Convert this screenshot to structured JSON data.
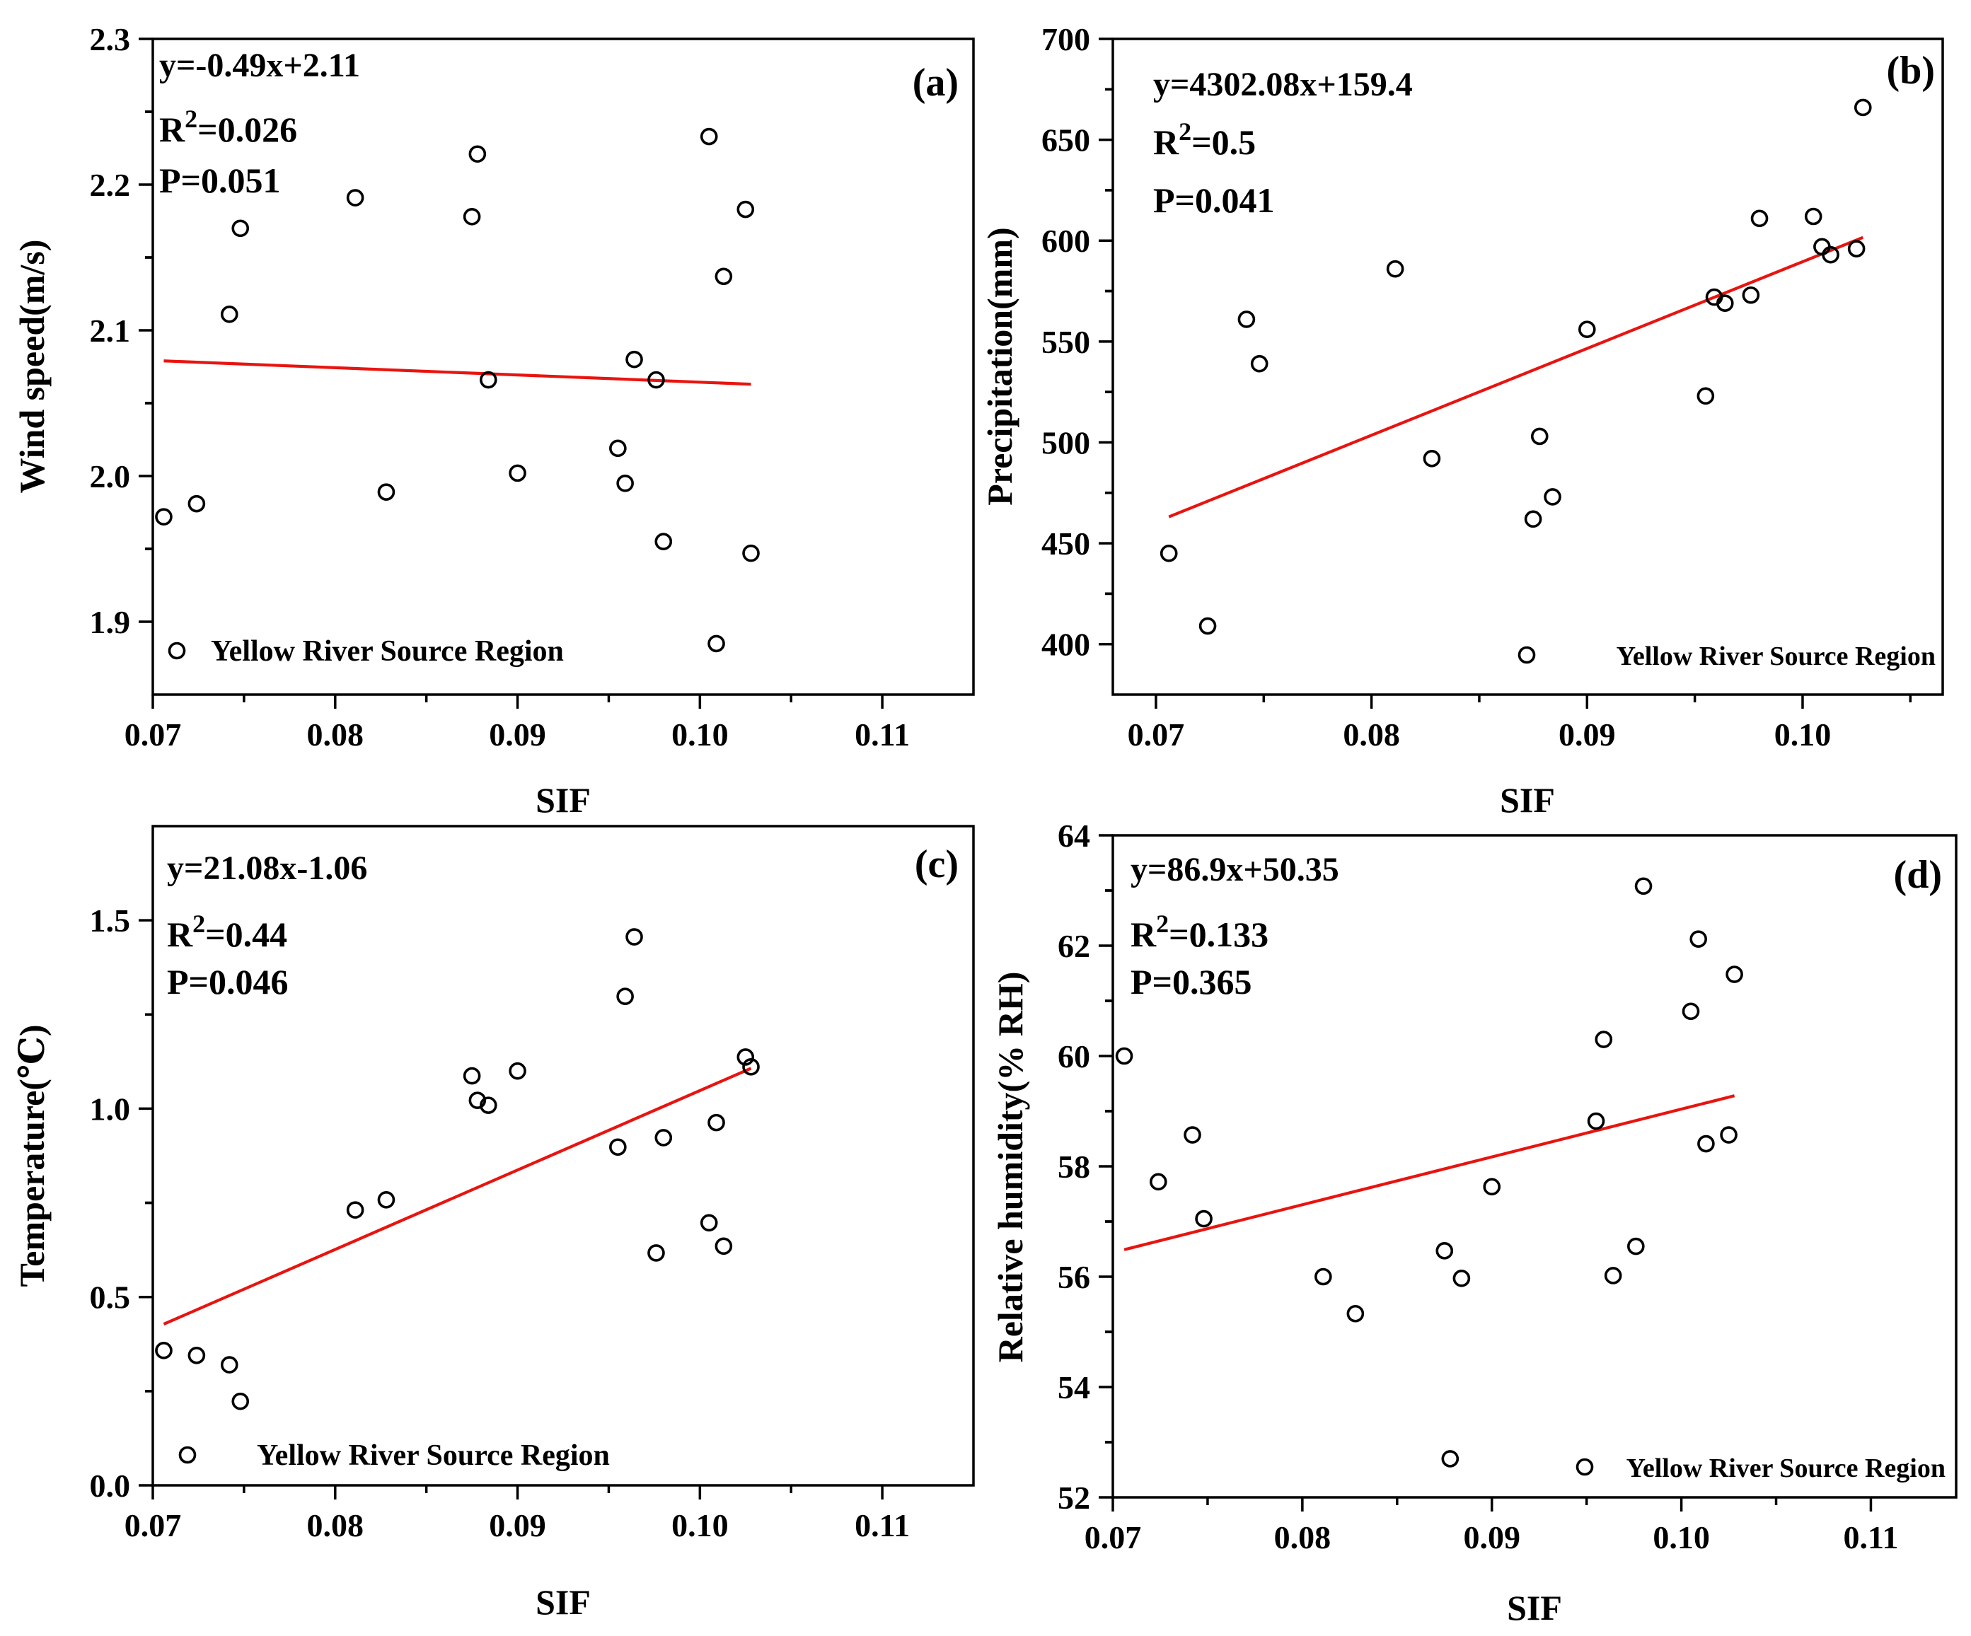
{
  "figure": {
    "x_label": "SIF",
    "legend_label": "Yellow River Source Region"
  },
  "chart_data": [
    {
      "type": "scatter",
      "panel": "a",
      "tag": "(a)",
      "title": "",
      "xlabel": "SIF",
      "ylabel": "Wind speed(m/s)",
      "xlim": [
        0.07,
        0.115
      ],
      "ylim": [
        1.85,
        2.3
      ],
      "xticks": [
        "0.07",
        "0.08",
        "0.09",
        "0.10",
        "0.11"
      ],
      "xtick_values": [
        0.07,
        0.08,
        0.09,
        0.1,
        0.11
      ],
      "yticks": [
        "1.9",
        "2.0",
        "2.1",
        "2.2",
        "2.3"
      ],
      "ytick_values": [
        1.9,
        2.0,
        2.1,
        2.2,
        2.3
      ],
      "equation": "y=-0.49x+2.11",
      "r2_prefix": "R",
      "r2_sup": "2",
      "r2_value": "=0.026",
      "p_value": "P=0.051",
      "legend": "Yellow River Source Region",
      "legend_position": "bottom-left",
      "fit_line": {
        "x": [
          0.0706,
          0.1028
        ],
        "y": [
          2.079,
          2.063
        ]
      },
      "x": [
        0.0706,
        0.0724,
        0.0742,
        0.0748,
        0.0811,
        0.0828,
        0.0875,
        0.0878,
        0.0884,
        0.09,
        0.0955,
        0.0959,
        0.0964,
        0.0976,
        0.098,
        0.1005,
        0.1009,
        0.1013,
        0.1025,
        0.1028
      ],
      "y": [
        1.972,
        1.981,
        2.111,
        2.17,
        2.191,
        1.989,
        2.178,
        2.221,
        2.066,
        2.002,
        2.019,
        1.995,
        2.08,
        2.066,
        1.955,
        2.233,
        1.885,
        2.137,
        2.183,
        1.947
      ]
    },
    {
      "type": "scatter",
      "panel": "b",
      "tag": "(b)",
      "title": "",
      "xlabel": "SIF",
      "ylabel": "Precipitation(mm)",
      "xlim": [
        0.068,
        0.1065
      ],
      "ylim": [
        375,
        700
      ],
      "xticks": [
        "0.07",
        "0.08",
        "0.09",
        "0.10"
      ],
      "xtick_values": [
        0.07,
        0.08,
        0.09,
        0.1
      ],
      "yticks": [
        "400",
        "450",
        "500",
        "550",
        "600",
        "650",
        "700"
      ],
      "ytick_values": [
        400,
        450,
        500,
        550,
        600,
        650,
        700
      ],
      "equation": "y=4302.08x+159.4",
      "r2_prefix": "R",
      "r2_sup": "2",
      "r2_value": "=0.5",
      "p_value": "P=0.041",
      "legend": "Yellow River Source Region",
      "legend_position": "bottom-right",
      "fit_line": {
        "x": [
          0.0706,
          0.1028
        ],
        "y": [
          463.1,
          601.6
        ]
      },
      "x": [
        0.0706,
        0.0724,
        0.0742,
        0.0748,
        0.0811,
        0.0828,
        0.0875,
        0.0878,
        0.0884,
        0.09,
        0.0955,
        0.0959,
        0.0964,
        0.0976,
        0.098,
        0.1005,
        0.1009,
        0.1013,
        0.1025,
        0.1028
      ],
      "y": [
        445,
        409,
        561,
        539,
        586,
        492,
        462,
        503,
        473,
        556,
        523,
        572,
        569,
        573,
        611,
        612,
        597,
        593,
        596,
        666
      ]
    },
    {
      "type": "scatter",
      "panel": "c",
      "tag": "(c)",
      "title": "",
      "xlabel": "SIF",
      "ylabel": "Temperature(℃)",
      "xlim": [
        0.07,
        0.115
      ],
      "ylim": [
        0.0,
        1.75
      ],
      "xticks": [
        "0.07",
        "0.08",
        "0.09",
        "0.10",
        "0.11"
      ],
      "xtick_values": [
        0.07,
        0.08,
        0.09,
        0.1,
        0.11
      ],
      "yticks": [
        "0.0",
        "0.5",
        "1.0",
        "1.5"
      ],
      "ytick_values": [
        0.0,
        0.5,
        1.0,
        1.5
      ],
      "equation": "y=21.08x-1.06",
      "r2_prefix": "R",
      "r2_sup": "2",
      "r2_value": "=0.44",
      "p_value": "P=0.046",
      "legend": "Yellow River Source Region",
      "legend_position": "bottom-left",
      "fit_line": {
        "x": [
          0.0706,
          0.1028
        ],
        "y": [
          0.428,
          1.107
        ]
      },
      "x": [
        0.0706,
        0.0724,
        0.0742,
        0.0748,
        0.0811,
        0.0828,
        0.0875,
        0.0878,
        0.0884,
        0.09,
        0.0955,
        0.0959,
        0.0964,
        0.0976,
        0.098,
        0.1005,
        0.1009,
        0.1013,
        0.1025,
        0.1028
      ],
      "y": [
        0.358,
        0.345,
        0.32,
        0.223,
        0.731,
        0.758,
        1.087,
        1.022,
        1.009,
        1.1,
        0.898,
        1.298,
        1.456,
        0.617,
        0.923,
        0.697,
        0.963,
        0.635,
        1.137,
        1.111
      ]
    },
    {
      "type": "scatter",
      "panel": "d",
      "tag": "(d)",
      "title": "",
      "xlabel": "SIF",
      "ylabel": "Relative humidity(% RH)",
      "xlim": [
        0.07,
        0.1145
      ],
      "ylim": [
        52,
        64
      ],
      "xticks": [
        "0.07",
        "0.08",
        "0.09",
        "0.10",
        "0.11"
      ],
      "xtick_values": [
        0.07,
        0.08,
        0.09,
        0.1,
        0.11
      ],
      "yticks": [
        "52",
        "54",
        "56",
        "58",
        "60",
        "62",
        "64"
      ],
      "ytick_values": [
        52,
        54,
        56,
        58,
        60,
        62,
        64
      ],
      "equation": "y=86.9x+50.35",
      "r2_prefix": "R",
      "r2_sup": "2",
      "r2_value": "=0.133",
      "p_value": "P=0.365",
      "legend": "Yellow River Source Region",
      "legend_position": "bottom-right",
      "fit_line": {
        "x": [
          0.0706,
          0.1028
        ],
        "y": [
          56.49,
          59.28
        ]
      },
      "x": [
        0.0706,
        0.0724,
        0.0742,
        0.0748,
        0.0811,
        0.0828,
        0.0875,
        0.0878,
        0.0884,
        0.09,
        0.0955,
        0.0959,
        0.0964,
        0.0976,
        0.098,
        0.1005,
        0.1009,
        0.1013,
        0.1025,
        0.1028
      ],
      "y": [
        60.0,
        57.72,
        58.57,
        57.05,
        56.0,
        55.33,
        56.47,
        52.7,
        55.97,
        57.63,
        58.82,
        60.3,
        56.02,
        56.55,
        63.08,
        60.81,
        62.12,
        58.41,
        58.57,
        61.48
      ]
    }
  ]
}
